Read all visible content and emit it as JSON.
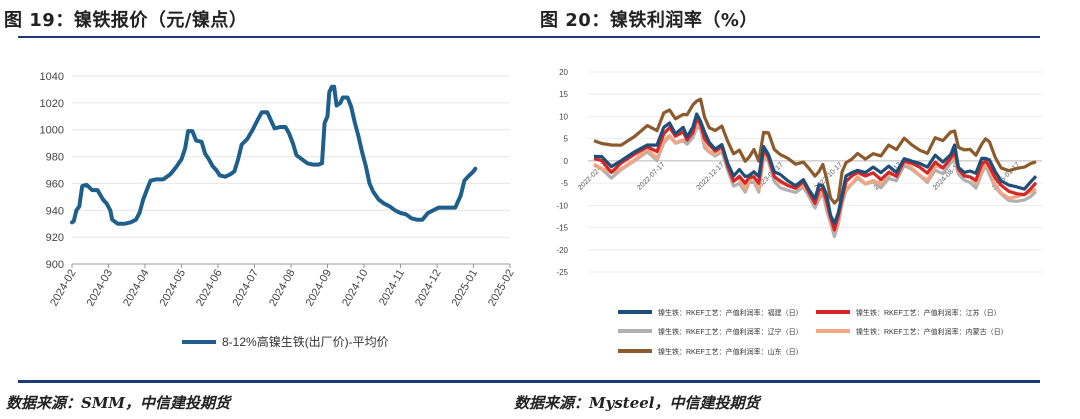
{
  "left": {
    "title": "图 19：镍铁报价（元/镍点）",
    "source": "数据来源：SMM，中信建投期货",
    "chart_data": {
      "type": "line",
      "title": "",
      "xlabel": "",
      "ylabel": "",
      "ylim": [
        900,
        1040
      ],
      "yticks": [
        900,
        920,
        940,
        960,
        980,
        1000,
        1020,
        1040
      ],
      "xticks": [
        "2024-02",
        "2024-03",
        "2024-04",
        "2024-05",
        "2024-06",
        "2024-07",
        "2024-08",
        "2024-09",
        "2024-10",
        "2024-11",
        "2024-12",
        "2025-01",
        "2025-02"
      ],
      "legend_position": "bottom",
      "series": [
        {
          "name": "8-12%高镍生铁(出厂价)-平均价",
          "color": "#1f5f8b",
          "points": [
            [
              0.0,
              931
            ],
            [
              0.05,
              932
            ],
            [
              0.12,
              940
            ],
            [
              0.2,
              943
            ],
            [
              0.28,
              958
            ],
            [
              0.4,
              959
            ],
            [
              0.55,
              955
            ],
            [
              0.7,
              955
            ],
            [
              0.85,
              948
            ],
            [
              0.95,
              945
            ],
            [
              1.05,
              940
            ],
            [
              1.1,
              933
            ],
            [
              1.25,
              930
            ],
            [
              1.45,
              930
            ],
            [
              1.6,
              931
            ],
            [
              1.75,
              933
            ],
            [
              1.85,
              938
            ],
            [
              1.95,
              948
            ],
            [
              2.05,
              955
            ],
            [
              2.15,
              962
            ],
            [
              2.3,
              963
            ],
            [
              2.5,
              963
            ],
            [
              2.7,
              967
            ],
            [
              2.85,
              972
            ],
            [
              3.0,
              978
            ],
            [
              3.1,
              986
            ],
            [
              3.18,
              999
            ],
            [
              3.3,
              999
            ],
            [
              3.4,
              992
            ],
            [
              3.55,
              991
            ],
            [
              3.65,
              982
            ],
            [
              3.75,
              978
            ],
            [
              3.85,
              973
            ],
            [
              3.95,
              970
            ],
            [
              4.05,
              966
            ],
            [
              4.2,
              965
            ],
            [
              4.35,
              967
            ],
            [
              4.45,
              969
            ],
            [
              4.55,
              978
            ],
            [
              4.65,
              989
            ],
            [
              4.8,
              993
            ],
            [
              4.95,
              1000
            ],
            [
              5.1,
              1008
            ],
            [
              5.2,
              1013
            ],
            [
              5.35,
              1013
            ],
            [
              5.45,
              1007
            ],
            [
              5.55,
              1001
            ],
            [
              5.7,
              1002
            ],
            [
              5.85,
              1002
            ],
            [
              5.95,
              997
            ],
            [
              6.05,
              990
            ],
            [
              6.15,
              981
            ],
            [
              6.3,
              978
            ],
            [
              6.45,
              975
            ],
            [
              6.6,
              974
            ],
            [
              6.75,
              974
            ],
            [
              6.85,
              975
            ],
            [
              6.92,
              1005
            ],
            [
              7.0,
              1010
            ],
            [
              7.05,
              1028
            ],
            [
              7.12,
              1032
            ],
            [
              7.18,
              1032
            ],
            [
              7.25,
              1018
            ],
            [
              7.35,
              1020
            ],
            [
              7.42,
              1024
            ],
            [
              7.55,
              1024
            ],
            [
              7.65,
              1017
            ],
            [
              7.75,
              1005
            ],
            [
              7.85,
              995
            ],
            [
              7.95,
              983
            ],
            [
              8.05,
              973
            ],
            [
              8.15,
              960
            ],
            [
              8.25,
              954
            ],
            [
              8.4,
              948
            ],
            [
              8.55,
              945
            ],
            [
              8.7,
              943
            ],
            [
              8.85,
              940
            ],
            [
              9.0,
              938
            ],
            [
              9.15,
              937
            ],
            [
              9.3,
              934
            ],
            [
              9.45,
              933
            ],
            [
              9.6,
              933
            ],
            [
              9.75,
              938
            ],
            [
              9.9,
              940
            ],
            [
              10.05,
              942
            ],
            [
              10.3,
              942
            ],
            [
              10.5,
              942
            ],
            [
              10.65,
              951
            ],
            [
              10.75,
              962
            ],
            [
              10.85,
              965
            ],
            [
              11.0,
              969
            ],
            [
              11.05,
              971
            ]
          ]
        }
      ]
    }
  },
  "right": {
    "title": "图 20：镍铁利润率（%）",
    "source": "数据来源：Mysteel，中信建投期货",
    "chart_data": {
      "type": "line",
      "title": "",
      "xlabel": "",
      "ylabel": "",
      "ylim": [
        -25,
        20
      ],
      "yticks": [
        -25,
        -20,
        -15,
        -10,
        -5,
        0,
        5,
        10,
        15,
        20
      ],
      "xticks": [
        "2022-02-17",
        "2022-07-17",
        "2022-12-17",
        "2023-05-17",
        "2023-10-17",
        "2024-03-17",
        "2024-08-17",
        "2025-01-17"
      ],
      "legend_position": "bottom",
      "base_profile": [
        [
          0,
          1
        ],
        [
          8,
          0.5
        ],
        [
          18,
          -1
        ],
        [
          28,
          0
        ],
        [
          42,
          2
        ],
        [
          55,
          4
        ],
        [
          65,
          3
        ],
        [
          72,
          7
        ],
        [
          78,
          8
        ],
        [
          84,
          6
        ],
        [
          92,
          7
        ],
        [
          96,
          6
        ],
        [
          102,
          8
        ],
        [
          106,
          10
        ],
        [
          110,
          9.5
        ],
        [
          114,
          6
        ],
        [
          119,
          4
        ],
        [
          125,
          3
        ],
        [
          132,
          4
        ],
        [
          138,
          0
        ],
        [
          144,
          -3
        ],
        [
          150,
          -2
        ],
        [
          156,
          -4
        ],
        [
          160,
          -3
        ],
        [
          165,
          -2
        ],
        [
          170,
          -4
        ],
        [
          175,
          3
        ],
        [
          180,
          2
        ],
        [
          186,
          -2
        ],
        [
          192,
          -3
        ],
        [
          200,
          -4
        ],
        [
          208,
          -5
        ],
        [
          216,
          -4
        ],
        [
          222,
          -6
        ],
        [
          228,
          -8
        ],
        [
          232,
          -6
        ],
        [
          236,
          -5
        ],
        [
          240,
          -8
        ],
        [
          244,
          -12
        ],
        [
          248,
          -14
        ],
        [
          252,
          -12
        ],
        [
          256,
          -7
        ],
        [
          260,
          -4
        ],
        [
          266,
          -3
        ],
        [
          272,
          -2
        ],
        [
          280,
          -3
        ],
        [
          288,
          -2
        ],
        [
          296,
          -3
        ],
        [
          304,
          -1
        ],
        [
          312,
          -2
        ],
        [
          320,
          1
        ],
        [
          328,
          0
        ],
        [
          336,
          -1
        ],
        [
          344,
          -2
        ],
        [
          352,
          1
        ],
        [
          360,
          0
        ],
        [
          368,
          2
        ],
        [
          372,
          3
        ],
        [
          376,
          -1
        ],
        [
          382,
          -2
        ],
        [
          388,
          -2
        ],
        [
          394,
          -3
        ],
        [
          400,
          0
        ],
        [
          404,
          1
        ],
        [
          408,
          0
        ],
        [
          414,
          -3
        ],
        [
          420,
          -5
        ],
        [
          428,
          -6
        ],
        [
          436,
          -6
        ],
        [
          444,
          -6
        ],
        [
          450,
          -5
        ],
        [
          456,
          -4
        ]
      ],
      "series": [
        {
          "name": "镍生铁：RKEF工艺：产值利润率：福建（日）",
          "color": "#1f4e79",
          "offset": 0
        },
        {
          "name": "镍生铁：RKEF工艺：产值利润率：江苏（日）",
          "color": "#d62728",
          "offset": -1
        },
        {
          "name": "镍生铁：RKEF工艺：产值利润率：辽宁（日）",
          "color": "#b0b0b0",
          "offset": -2.5
        },
        {
          "name": "镍生铁：RKEF工艺：产值利润率：内蒙古（日）",
          "color": "#f4a582",
          "offset": -1.8
        },
        {
          "name": "镍生铁：RKEF工艺：产值利润率：山东（日）",
          "color": "#8c5a2b",
          "offset": 4
        }
      ]
    }
  }
}
